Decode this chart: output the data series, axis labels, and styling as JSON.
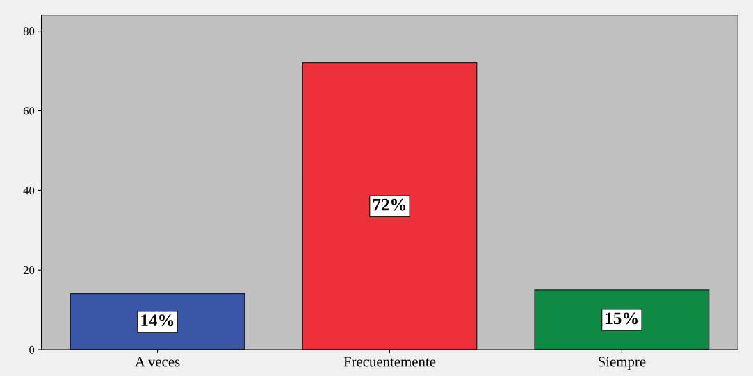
{
  "chart_data": {
    "type": "bar",
    "categories": [
      "A veces",
      "Frecuentemente",
      "Siempre"
    ],
    "values": [
      14,
      72,
      15
    ],
    "colors": [
      "#3a56a8",
      "#ee3038",
      "#0e8a44"
    ],
    "value_labels": [
      "14%",
      "72%",
      "15%"
    ],
    "ylim": [
      0,
      84
    ],
    "yticks": [
      0,
      20,
      40,
      60,
      80
    ],
    "grid": false,
    "legend": false
  }
}
